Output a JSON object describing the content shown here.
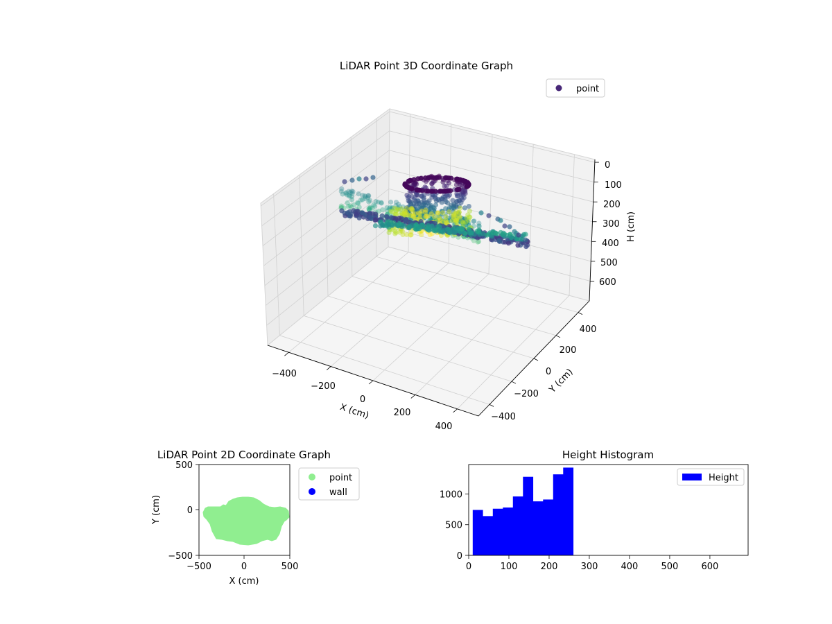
{
  "chart_data": [
    {
      "type": "scatter",
      "title": "LiDAR Point 3D Coordinate Graph",
      "xlabel": "X (cm)",
      "ylabel": "Y (cm)",
      "zlabel": "H (cm)",
      "xlim": [
        -500,
        500
      ],
      "ylim": [
        -500,
        500
      ],
      "zlim": [
        0,
        680
      ],
      "z_inverted": true,
      "x_ticks": [
        "−400",
        "−200",
        "0",
        "200",
        "400"
      ],
      "y_ticks": [
        "−400",
        "−200",
        "0",
        "200",
        "400"
      ],
      "z_ticks": [
        "0",
        "100",
        "200",
        "300",
        "400",
        "500",
        "600"
      ],
      "legend": [
        "point"
      ],
      "legend_position": "top-right",
      "colormap": "viridis",
      "grid": true
    },
    {
      "type": "scatter",
      "title": "LiDAR Point 2D Coordinate Graph",
      "xlabel": "X (cm)",
      "ylabel": "Y (cm)",
      "xlim": [
        -500,
        500
      ],
      "ylim": [
        -500,
        500
      ],
      "x_ticks": [
        "−500",
        "0",
        "500"
      ],
      "y_ticks": [
        "500",
        "0",
        "−500"
      ],
      "series": [
        {
          "name": "point",
          "color": "#90ee90"
        },
        {
          "name": "wall",
          "color": "#0000ff"
        }
      ],
      "legend_position": "outside-right",
      "grid": false
    },
    {
      "type": "bar",
      "title": "Height Histogram",
      "xlabel": "",
      "ylabel": "",
      "xlim": [
        0,
        695
      ],
      "ylim": [
        0,
        1480
      ],
      "x_ticks": [
        "0",
        "100",
        "200",
        "300",
        "400",
        "500",
        "600"
      ],
      "y_ticks": [
        "0",
        "500",
        "1000"
      ],
      "bin_width": 25,
      "bins_start": [
        10,
        35,
        60,
        85,
        110,
        135,
        160,
        185,
        210,
        235
      ],
      "values": [
        740,
        640,
        760,
        780,
        960,
        1280,
        880,
        910,
        1320,
        1430
      ],
      "series": [
        {
          "name": "Height",
          "color": "#0000ff"
        }
      ],
      "legend_position": "top-right",
      "grid": false
    }
  ]
}
